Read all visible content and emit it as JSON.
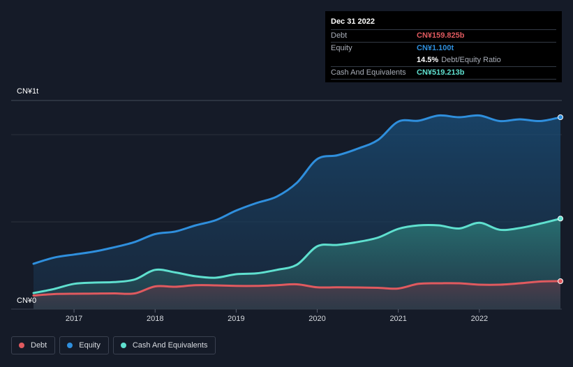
{
  "tooltip": {
    "date": "Dec 31 2022",
    "rows": [
      {
        "label": "Debt",
        "value": "CN¥159.825b",
        "color": "#e05a5f"
      },
      {
        "label": "Equity",
        "value": "CN¥1.100t",
        "color": "#2f8fdd"
      }
    ],
    "ratio_pct": "14.5%",
    "ratio_label": "Debt/Equity Ratio",
    "cash": {
      "label": "Cash And Equivalents",
      "value": "CN¥519.213b",
      "color": "#5fe0cf"
    }
  },
  "legend": [
    {
      "label": "Debt",
      "color": "#e05a5f"
    },
    {
      "label": "Equity",
      "color": "#2f8fdd"
    },
    {
      "label": "Cash And Equivalents",
      "color": "#5fe0cf"
    }
  ],
  "chart_data": {
    "type": "area",
    "title": "",
    "xlabel": "",
    "ylabel": "",
    "y_unit": "CN¥ billions",
    "ylim": [
      0,
      1200
    ],
    "y_tick_labels": [
      "CN¥0",
      "CN¥1t"
    ],
    "x_ticks": [
      {
        "label": "2017",
        "x": 2017.0
      },
      {
        "label": "2018",
        "x": 2018.0
      },
      {
        "label": "2019",
        "x": 2019.0
      },
      {
        "label": "2020",
        "x": 2020.0
      },
      {
        "label": "2021",
        "x": 2021.0
      },
      {
        "label": "2022",
        "x": 2022.0
      }
    ],
    "x": [
      2016.5,
      2016.75,
      2017.0,
      2017.25,
      2017.5,
      2017.75,
      2018.0,
      2018.25,
      2018.5,
      2018.75,
      2019.0,
      2019.25,
      2019.5,
      2019.75,
      2020.0,
      2020.25,
      2020.5,
      2020.75,
      2021.0,
      2021.25,
      2021.5,
      2021.75,
      2022.0,
      2022.25,
      2022.5,
      2022.75,
      2023.0
    ],
    "series": [
      {
        "name": "Equity",
        "color": "#2f8fdd",
        "values": [
          260,
          295,
          313,
          330,
          355,
          385,
          430,
          445,
          480,
          510,
          565,
          608,
          645,
          725,
          860,
          882,
          920,
          970,
          1075,
          1080,
          1110,
          1100,
          1110,
          1078,
          1088,
          1078,
          1100
        ]
      },
      {
        "name": "Cash And Equivalents",
        "color": "#5fe0cf",
        "values": [
          92,
          115,
          145,
          152,
          155,
          170,
          225,
          210,
          188,
          180,
          200,
          205,
          225,
          255,
          360,
          368,
          385,
          410,
          460,
          480,
          480,
          462,
          495,
          455,
          465,
          490,
          519
        ]
      },
      {
        "name": "Debt",
        "color": "#e05a5f",
        "values": [
          78,
          86,
          88,
          89,
          90,
          90,
          130,
          128,
          137,
          136,
          133,
          133,
          137,
          142,
          125,
          125,
          124,
          122,
          118,
          145,
          148,
          148,
          140,
          140,
          148,
          158,
          160
        ]
      }
    ]
  }
}
